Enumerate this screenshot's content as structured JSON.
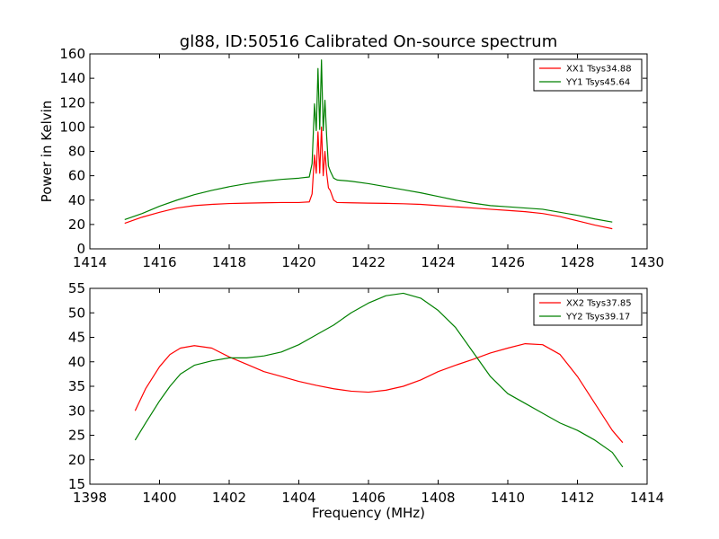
{
  "chart_data": [
    {
      "type": "line",
      "title": "gl88, ID:50516 Calibrated On-source spectrum",
      "xlabel": "",
      "ylabel": "Power in Kelvin",
      "xlim": [
        1414,
        1430
      ],
      "ylim": [
        0,
        160
      ],
      "xticks": [
        1414,
        1416,
        1418,
        1420,
        1422,
        1424,
        1426,
        1428,
        1430
      ],
      "yticks": [
        0,
        20,
        40,
        60,
        80,
        100,
        120,
        140,
        160
      ],
      "grid": false,
      "legend_position": "top-right",
      "series": [
        {
          "name": "XX1 Tsys34.88",
          "color": "#ff0000",
          "x": [
            1415.0,
            1415.5,
            1416.0,
            1416.5,
            1417.0,
            1417.5,
            1418.0,
            1418.5,
            1419.0,
            1419.5,
            1420.0,
            1420.3,
            1420.38,
            1420.45,
            1420.5,
            1420.55,
            1420.6,
            1420.65,
            1420.7,
            1420.75,
            1420.8,
            1420.85,
            1420.9,
            1421.0,
            1421.1,
            1421.5,
            1422.0,
            1422.5,
            1423.0,
            1423.5,
            1424.0,
            1424.5,
            1425.0,
            1425.5,
            1426.0,
            1426.5,
            1427.0,
            1427.5,
            1428.0,
            1428.5,
            1429.0
          ],
          "values": [
            21,
            26,
            30,
            33.5,
            35.5,
            36.5,
            37.2,
            37.5,
            37.8,
            38,
            38,
            38.5,
            45,
            77,
            62,
            96,
            62,
            100,
            60,
            80,
            62,
            50,
            48,
            40,
            38,
            37.8,
            37.5,
            37.3,
            37,
            36.5,
            35.5,
            34.5,
            33.5,
            32.5,
            31.5,
            30.5,
            29,
            26.5,
            23,
            19.5,
            16.5
          ]
        },
        {
          "name": "YY1 Tsys45.64",
          "color": "#008000",
          "x": [
            1415.0,
            1415.5,
            1416.0,
            1416.5,
            1417.0,
            1417.5,
            1418.0,
            1418.5,
            1419.0,
            1419.5,
            1420.0,
            1420.3,
            1420.38,
            1420.45,
            1420.5,
            1420.55,
            1420.6,
            1420.65,
            1420.7,
            1420.75,
            1420.8,
            1420.85,
            1420.9,
            1421.0,
            1421.1,
            1421.5,
            1422.0,
            1422.5,
            1423.0,
            1423.5,
            1424.0,
            1424.5,
            1425.0,
            1425.5,
            1426.0,
            1426.5,
            1427.0,
            1427.5,
            1428.0,
            1428.5,
            1429.0
          ],
          "values": [
            24,
            29,
            35,
            40,
            44.5,
            48,
            51,
            53.5,
            55.5,
            57,
            58,
            59,
            70,
            119,
            97,
            148,
            98,
            155,
            97,
            122,
            92,
            68,
            64,
            58,
            56.5,
            55.5,
            53.5,
            51,
            48.5,
            46,
            43,
            40,
            37.5,
            35.5,
            34.5,
            33.5,
            32.5,
            30,
            27.5,
            24.5,
            22
          ]
        }
      ]
    },
    {
      "type": "line",
      "title": "",
      "xlabel": "Frequency (MHz)",
      "ylabel": "",
      "xlim": [
        1398,
        1414
      ],
      "ylim": [
        15,
        55
      ],
      "xticks": [
        1398,
        1400,
        1402,
        1404,
        1406,
        1408,
        1410,
        1412,
        1414
      ],
      "yticks": [
        15,
        20,
        25,
        30,
        35,
        40,
        45,
        50,
        55
      ],
      "grid": false,
      "legend_position": "top-right",
      "series": [
        {
          "name": "XX2 Tsys37.85",
          "color": "#ff0000",
          "x": [
            1399.3,
            1399.6,
            1400.0,
            1400.3,
            1400.6,
            1401.0,
            1401.5,
            1402.0,
            1402.5,
            1403.0,
            1403.5,
            1404.0,
            1404.5,
            1405.0,
            1405.5,
            1406.0,
            1406.5,
            1407.0,
            1407.5,
            1408.0,
            1408.5,
            1409.0,
            1409.5,
            1410.0,
            1410.5,
            1411.0,
            1411.5,
            1412.0,
            1412.5,
            1413.0,
            1413.3
          ],
          "values": [
            30,
            34.5,
            39,
            41.5,
            42.8,
            43.3,
            42.8,
            41,
            39.5,
            38,
            37,
            36,
            35.2,
            34.5,
            34,
            33.8,
            34.2,
            35,
            36.3,
            38,
            39.3,
            40.5,
            41.8,
            42.8,
            43.7,
            43.5,
            41.5,
            37,
            31.5,
            26,
            23.5
          ]
        },
        {
          "name": "YY2 Tsys39.17",
          "color": "#008000",
          "x": [
            1399.3,
            1399.6,
            1400.0,
            1400.3,
            1400.6,
            1401.0,
            1401.5,
            1402.0,
            1402.5,
            1403.0,
            1403.5,
            1404.0,
            1404.5,
            1405.0,
            1405.5,
            1406.0,
            1406.5,
            1407.0,
            1407.5,
            1408.0,
            1408.5,
            1409.0,
            1409.5,
            1410.0,
            1410.5,
            1411.0,
            1411.5,
            1412.0,
            1412.5,
            1413.0,
            1413.3
          ],
          "values": [
            24,
            27.5,
            32,
            35,
            37.5,
            39.3,
            40.2,
            40.8,
            40.8,
            41.2,
            42,
            43.5,
            45.5,
            47.5,
            50,
            52,
            53.5,
            54,
            53,
            50.5,
            47,
            42,
            37,
            33.5,
            31.5,
            29.5,
            27.5,
            26,
            24,
            21.5,
            18.5
          ]
        }
      ]
    }
  ]
}
